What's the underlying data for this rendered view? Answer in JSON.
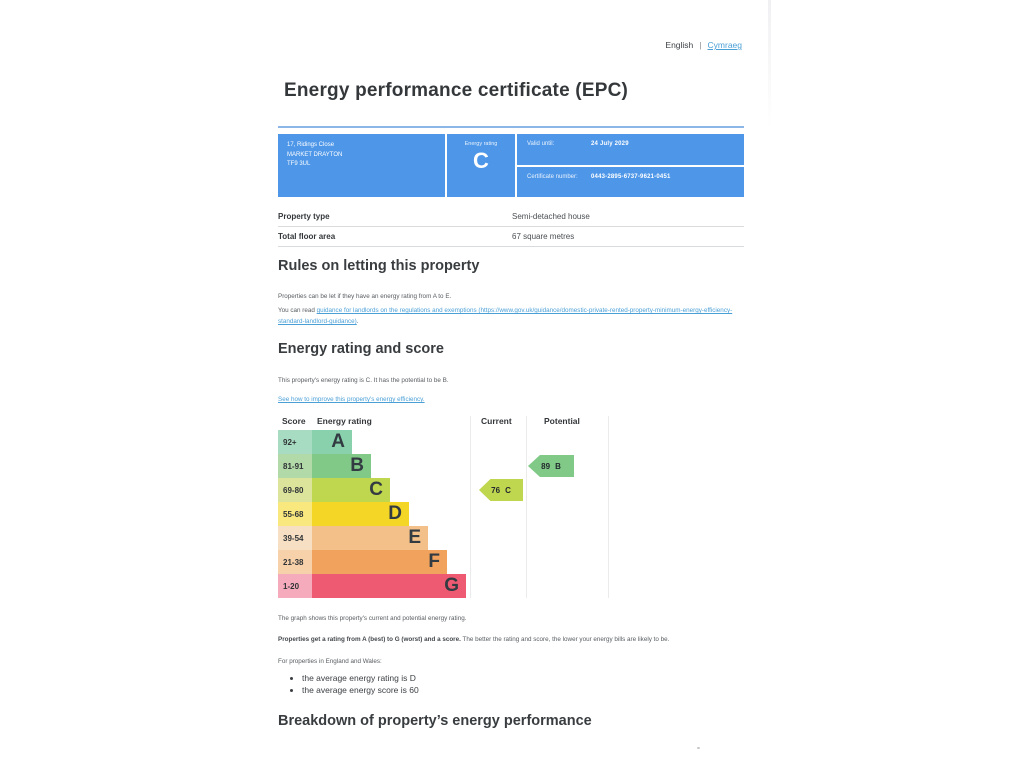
{
  "header": {
    "language_current": "English",
    "language_separator": "|",
    "language_link": "Cymraeg",
    "title": "Energy performance certificate (EPC)"
  },
  "certificate": {
    "address_lines": [
      "17, Ridings Close",
      "MARKET DRAYTON",
      "TF9 3UL"
    ],
    "energy_rating_label": "Energy rating",
    "energy_rating": "C",
    "valid_until_label": "Valid until:",
    "valid_until": "24 July 2029",
    "number_label": "Certificate number:",
    "number": "0443-2895-6737-9621-0451"
  },
  "summary": {
    "rows": [
      {
        "label": "Property type",
        "value": "Semi-detached house"
      },
      {
        "label": "Total floor area",
        "value": "67 square metres"
      }
    ]
  },
  "rules_section": {
    "heading": "Rules on letting this property",
    "paragraph1": "Properties can be let if they have an energy rating from A to E.",
    "paragraph2_prefix": "You can read ",
    "paragraph2_link": "guidance for landlords on the regulations and exemptions (https://www.gov.uk/guidance/domestic-private-rented-property-minimum-energy-efficiency-standard-landlord-guidance)",
    "paragraph2_suffix": "."
  },
  "rating_section": {
    "heading": "Energy rating and score",
    "paragraph1": "This property's energy rating is C. It has the potential to be B.",
    "improve_link": "See how to improve this property's energy efficiency."
  },
  "chart_data": {
    "type": "bar",
    "subtype": "epc-energy-rating-bands",
    "columns": [
      "Score",
      "Energy rating",
      "Current",
      "Potential"
    ],
    "bands": [
      {
        "score_range": "92+",
        "letter": "A",
        "band_color": "#89d1ad",
        "score_cell_color": "#a8dcc2"
      },
      {
        "score_range": "81-91",
        "letter": "B",
        "band_color": "#80c987",
        "score_cell_color": "#b2d9a8"
      },
      {
        "score_range": "69-80",
        "letter": "C",
        "band_color": "#bfd64f",
        "score_cell_color": "#dce49c"
      },
      {
        "score_range": "55-68",
        "letter": "D",
        "band_color": "#f4d626",
        "score_cell_color": "#f8e87e"
      },
      {
        "score_range": "39-54",
        "letter": "E",
        "band_color": "#f2c088",
        "score_cell_color": "#f7dfc3"
      },
      {
        "score_range": "21-38",
        "letter": "F",
        "band_color": "#f1a35d",
        "score_cell_color": "#f6d1aa"
      },
      {
        "score_range": "1-20",
        "letter": "G",
        "band_color": "#ee5a71",
        "score_cell_color": "#f5abbb"
      }
    ],
    "current": {
      "score": 76,
      "letter": "C"
    },
    "potential": {
      "score": 89,
      "letter": "B"
    }
  },
  "chart_notes": {
    "note1": "The graph shows this property's current and potential energy rating.",
    "note2_bold": "Properties get a rating from A (best) to G (worst) and a score.",
    "note2_rest": " The better the rating and score, the lower your energy bills are likely to be.",
    "note3": "For properties in England and Wales:",
    "bullets": [
      "the average energy rating is D",
      "the average energy score is 60"
    ]
  },
  "breakdown_section": {
    "heading": "Breakdown of property’s energy performance"
  },
  "colors": {
    "accent_blue": "#4d96e8",
    "link_blue": "#4a9fd6",
    "title_rule_blue": "#8cb6e6"
  }
}
